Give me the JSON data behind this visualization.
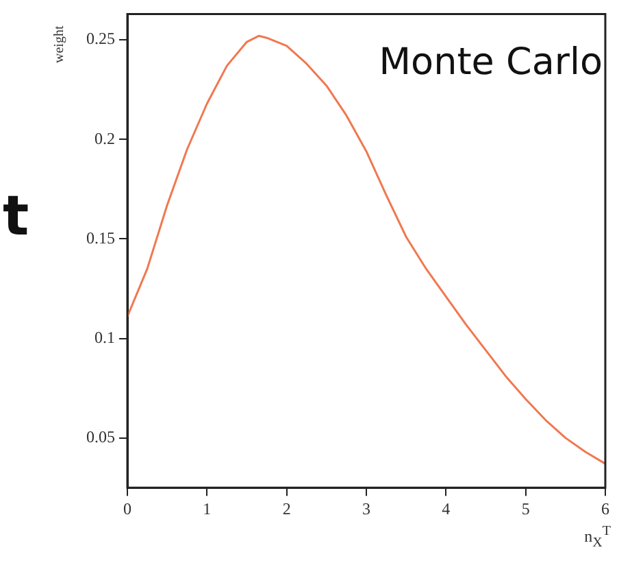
{
  "chart_data": {
    "type": "line",
    "xlabel": "n$_{X}$$^{T}$",
    "ylabel": "weight",
    "annotations": [
      "Monte Carlo",
      "t"
    ],
    "x": [
      0,
      0.25,
      0.5,
      0.75,
      1,
      1.25,
      1.5,
      1.65,
      1.75,
      2,
      2.25,
      2.5,
      2.75,
      3,
      3.25,
      3.5,
      3.75,
      4,
      4.25,
      4.5,
      4.75,
      5,
      5.25,
      5.5,
      5.75,
      6
    ],
    "series": [
      {
        "color": "#f07850",
        "values": [
          0.111,
          0.135,
          0.167,
          0.195,
          0.218,
          0.237,
          0.249,
          0.252,
          0.251,
          0.247,
          0.238,
          0.227,
          0.212,
          0.194,
          0.172,
          0.151,
          0.135,
          0.121,
          0.107,
          0.094,
          0.081,
          0.0695,
          0.059,
          0.05,
          0.043,
          0.037
        ]
      }
    ],
    "xlim": [
      0,
      6
    ],
    "ylim": [
      0.025,
      0.263
    ],
    "xticks": [
      0,
      1,
      2,
      3,
      4,
      5,
      6
    ],
    "yticks": [
      0.05,
      0.1,
      0.15,
      0.2,
      0.25
    ],
    "grid": false,
    "legend": false,
    "marker": "none",
    "line_style": "solid"
  }
}
